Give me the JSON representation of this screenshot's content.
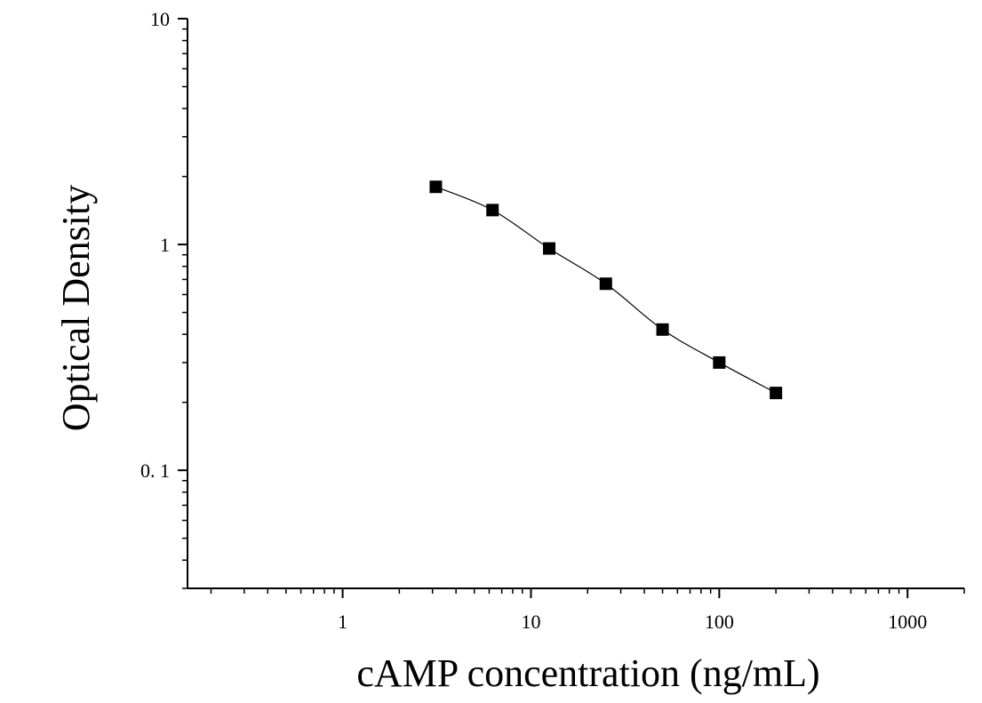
{
  "chart_data": {
    "type": "scatter",
    "xlabel": "cAMP concentration (ng/mL)",
    "ylabel": "Optical Density",
    "x_scale": "log",
    "y_scale": "log",
    "xlim": [
      0.15,
      2000
    ],
    "ylim": [
      0.03,
      10
    ],
    "x_ticks": [
      {
        "value": 1,
        "label": "1"
      },
      {
        "value": 10,
        "label": "10"
      },
      {
        "value": 100,
        "label": "100"
      },
      {
        "value": 1000,
        "label": "1000"
      }
    ],
    "y_ticks": [
      {
        "value": 0.1,
        "label": "0. 1"
      },
      {
        "value": 1,
        "label": "1"
      },
      {
        "value": 10,
        "label": "10"
      }
    ],
    "grid": false,
    "series": [
      {
        "marker": "square",
        "color": "#000000",
        "fit_line": true,
        "points": [
          {
            "x": 3.125,
            "y": 1.8
          },
          {
            "x": 6.25,
            "y": 1.42
          },
          {
            "x": 12.5,
            "y": 0.96
          },
          {
            "x": 25,
            "y": 0.67
          },
          {
            "x": 50,
            "y": 0.42
          },
          {
            "x": 100,
            "y": 0.3
          },
          {
            "x": 200,
            "y": 0.22
          }
        ]
      }
    ]
  }
}
